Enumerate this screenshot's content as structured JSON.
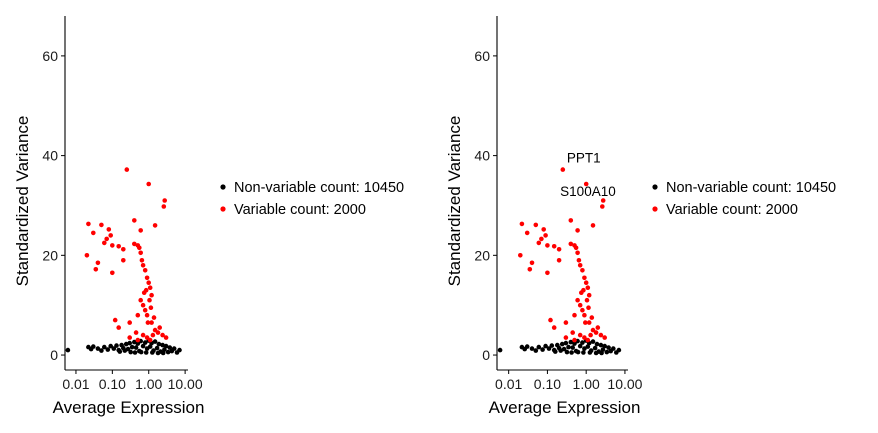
{
  "colors": {
    "nonvariable": "#000000",
    "variable": "#ff0000",
    "axis": "#000000"
  },
  "chart_data": [
    {
      "type": "scatter",
      "xscale": "log10",
      "xlim": [
        0.005,
        12
      ],
      "ylim": [
        -3,
        68
      ],
      "xticks": [
        0.01,
        0.1,
        1,
        10
      ],
      "xtick_labels": [
        "0.01",
        "0.10",
        "1.00",
        "10.00"
      ],
      "yticks": [
        0,
        20,
        40,
        60
      ],
      "ytick_labels": [
        "0",
        "20",
        "40",
        "60"
      ],
      "xlabel": "Average Expression",
      "ylabel": "Standardized Variance",
      "grid": false,
      "legend_position": "right",
      "series": [
        {
          "name": "Non-variable count: 10450",
          "color": "#000000",
          "points": [
            [
              0.006,
              1.0
            ],
            [
              0.022,
              1.6
            ],
            [
              0.026,
              1.2
            ],
            [
              0.03,
              1.7
            ],
            [
              0.04,
              1.3
            ],
            [
              0.05,
              0.9
            ],
            [
              0.06,
              1.6
            ],
            [
              0.075,
              1.1
            ],
            [
              0.09,
              1.8
            ],
            [
              0.11,
              1.3
            ],
            [
              0.13,
              1.9
            ],
            [
              0.15,
              1.0
            ],
            [
              0.18,
              2.0
            ],
            [
              0.2,
              1.4
            ],
            [
              0.24,
              2.2
            ],
            [
              0.27,
              1.2
            ],
            [
              0.3,
              2.4
            ],
            [
              0.35,
              1.6
            ],
            [
              0.4,
              2.6
            ],
            [
              0.45,
              1.5
            ],
            [
              0.5,
              2.3
            ],
            [
              0.55,
              0.8
            ],
            [
              0.6,
              2.8
            ],
            [
              0.7,
              1.8
            ],
            [
              0.8,
              2.5
            ],
            [
              0.9,
              1.3
            ],
            [
              1.0,
              2.9
            ],
            [
              1.1,
              1.7
            ],
            [
              1.2,
              2.4
            ],
            [
              1.35,
              0.9
            ],
            [
              1.5,
              2.7
            ],
            [
              1.7,
              1.4
            ],
            [
              1.9,
              2.2
            ],
            [
              2.1,
              0.7
            ],
            [
              2.4,
              2.0
            ],
            [
              2.7,
              1.1
            ],
            [
              3.0,
              1.8
            ],
            [
              3.4,
              0.6
            ],
            [
              3.8,
              1.5
            ],
            [
              4.3,
              0.8
            ],
            [
              5.0,
              1.3
            ],
            [
              6.0,
              0.5
            ],
            [
              7.0,
              1.0
            ],
            [
              0.16,
              0.7
            ],
            [
              0.22,
              0.9
            ],
            [
              0.32,
              0.6
            ],
            [
              0.42,
              0.5
            ],
            [
              0.62,
              0.6
            ],
            [
              0.85,
              0.5
            ],
            [
              1.25,
              0.5
            ],
            [
              1.8,
              0.4
            ],
            [
              2.5,
              0.4
            ]
          ]
        },
        {
          "name": "Variable count: 2000",
          "color": "#ff0000",
          "points": [
            [
              0.25,
              37.2
            ],
            [
              1.0,
              34.3
            ],
            [
              2.75,
              31.0
            ],
            [
              2.6,
              29.8
            ],
            [
              0.4,
              27.0
            ],
            [
              0.6,
              25.0
            ],
            [
              1.5,
              26.0
            ],
            [
              0.022,
              26.3
            ],
            [
              0.03,
              24.5
            ],
            [
              0.05,
              26.1
            ],
            [
              0.08,
              25.2
            ],
            [
              0.06,
              22.5
            ],
            [
              0.07,
              23.3
            ],
            [
              0.09,
              24.0
            ],
            [
              0.1,
              22.0
            ],
            [
              0.15,
              21.8
            ],
            [
              0.2,
              21.2
            ],
            [
              0.4,
              22.3
            ],
            [
              0.5,
              22.0
            ],
            [
              0.55,
              21.5
            ],
            [
              0.6,
              20.5
            ],
            [
              0.65,
              19.0
            ],
            [
              0.7,
              18.0
            ],
            [
              0.8,
              17.0
            ],
            [
              0.9,
              15.5
            ],
            [
              1.0,
              14.5
            ],
            [
              1.1,
              13.5
            ],
            [
              1.2,
              12.0
            ],
            [
              0.2,
              19.0
            ],
            [
              0.02,
              20.0
            ],
            [
              0.04,
              18.5
            ],
            [
              0.1,
              16.5
            ],
            [
              0.035,
              17.2
            ],
            [
              0.12,
              7.0
            ],
            [
              0.15,
              5.5
            ],
            [
              0.3,
              6.5
            ],
            [
              0.5,
              8.0
            ],
            [
              0.6,
              11.0
            ],
            [
              0.7,
              10.0
            ],
            [
              0.8,
              9.0
            ],
            [
              0.9,
              8.0
            ],
            [
              1.2,
              6.5
            ],
            [
              1.5,
              5.0
            ],
            [
              1.8,
              4.5
            ],
            [
              2.0,
              5.5
            ],
            [
              2.4,
              4.0
            ],
            [
              3.0,
              3.5
            ],
            [
              0.5,
              3.0
            ],
            [
              0.7,
              4.0
            ],
            [
              0.9,
              3.5
            ],
            [
              1.1,
              3.0
            ],
            [
              1.3,
              4.0
            ],
            [
              0.3,
              3.5
            ],
            [
              0.45,
              4.5
            ],
            [
              0.95,
              6.5
            ],
            [
              1.4,
              7.5
            ],
            [
              0.75,
              12.5
            ],
            [
              0.85,
              13.0
            ],
            [
              1.05,
              11.0
            ],
            [
              1.15,
              9.5
            ]
          ]
        }
      ],
      "annotations": []
    },
    {
      "type": "scatter",
      "xscale": "log10",
      "xlim": [
        0.005,
        12
      ],
      "ylim": [
        -3,
        68
      ],
      "xticks": [
        0.01,
        0.1,
        1,
        10
      ],
      "xtick_labels": [
        "0.01",
        "0.10",
        "1.00",
        "10.00"
      ],
      "yticks": [
        0,
        20,
        40,
        60
      ],
      "ytick_labels": [
        "0",
        "20",
        "40",
        "60"
      ],
      "xlabel": "Average Expression",
      "ylabel": "Standardized Variance",
      "grid": false,
      "legend_position": "right",
      "series": [
        {
          "name": "Non-variable count: 10450",
          "color": "#000000",
          "points": [
            [
              0.006,
              1.0
            ],
            [
              0.022,
              1.6
            ],
            [
              0.026,
              1.2
            ],
            [
              0.03,
              1.7
            ],
            [
              0.04,
              1.3
            ],
            [
              0.05,
              0.9
            ],
            [
              0.06,
              1.6
            ],
            [
              0.075,
              1.1
            ],
            [
              0.09,
              1.8
            ],
            [
              0.11,
              1.3
            ],
            [
              0.13,
              1.9
            ],
            [
              0.15,
              1.0
            ],
            [
              0.18,
              2.0
            ],
            [
              0.2,
              1.4
            ],
            [
              0.24,
              2.2
            ],
            [
              0.27,
              1.2
            ],
            [
              0.3,
              2.4
            ],
            [
              0.35,
              1.6
            ],
            [
              0.4,
              2.6
            ],
            [
              0.45,
              1.5
            ],
            [
              0.5,
              2.3
            ],
            [
              0.55,
              0.8
            ],
            [
              0.6,
              2.8
            ],
            [
              0.7,
              1.8
            ],
            [
              0.8,
              2.5
            ],
            [
              0.9,
              1.3
            ],
            [
              1.0,
              2.9
            ],
            [
              1.1,
              1.7
            ],
            [
              1.2,
              2.4
            ],
            [
              1.35,
              0.9
            ],
            [
              1.5,
              2.7
            ],
            [
              1.7,
              1.4
            ],
            [
              1.9,
              2.2
            ],
            [
              2.1,
              0.7
            ],
            [
              2.4,
              2.0
            ],
            [
              2.7,
              1.1
            ],
            [
              3.0,
              1.8
            ],
            [
              3.4,
              0.6
            ],
            [
              3.8,
              1.5
            ],
            [
              4.3,
              0.8
            ],
            [
              5.0,
              1.3
            ],
            [
              6.0,
              0.5
            ],
            [
              7.0,
              1.0
            ],
            [
              0.16,
              0.7
            ],
            [
              0.22,
              0.9
            ],
            [
              0.32,
              0.6
            ],
            [
              0.42,
              0.5
            ],
            [
              0.62,
              0.6
            ],
            [
              0.85,
              0.5
            ],
            [
              1.25,
              0.5
            ],
            [
              1.8,
              0.4
            ],
            [
              2.5,
              0.4
            ]
          ]
        },
        {
          "name": "Variable count: 2000",
          "color": "#ff0000",
          "points": [
            [
              0.25,
              37.2
            ],
            [
              1.0,
              34.3
            ],
            [
              2.75,
              31.0
            ],
            [
              2.6,
              29.8
            ],
            [
              0.4,
              27.0
            ],
            [
              0.6,
              25.0
            ],
            [
              1.5,
              26.0
            ],
            [
              0.022,
              26.3
            ],
            [
              0.03,
              24.5
            ],
            [
              0.05,
              26.1
            ],
            [
              0.08,
              25.2
            ],
            [
              0.06,
              22.5
            ],
            [
              0.07,
              23.3
            ],
            [
              0.09,
              24.0
            ],
            [
              0.1,
              22.0
            ],
            [
              0.15,
              21.8
            ],
            [
              0.2,
              21.2
            ],
            [
              0.4,
              22.3
            ],
            [
              0.5,
              22.0
            ],
            [
              0.55,
              21.5
            ],
            [
              0.6,
              20.5
            ],
            [
              0.65,
              19.0
            ],
            [
              0.7,
              18.0
            ],
            [
              0.8,
              17.0
            ],
            [
              0.9,
              15.5
            ],
            [
              1.0,
              14.5
            ],
            [
              1.1,
              13.5
            ],
            [
              1.2,
              12.0
            ],
            [
              0.2,
              19.0
            ],
            [
              0.02,
              20.0
            ],
            [
              0.04,
              18.5
            ],
            [
              0.1,
              16.5
            ],
            [
              0.035,
              17.2
            ],
            [
              0.12,
              7.0
            ],
            [
              0.15,
              5.5
            ],
            [
              0.3,
              6.5
            ],
            [
              0.5,
              8.0
            ],
            [
              0.6,
              11.0
            ],
            [
              0.7,
              10.0
            ],
            [
              0.8,
              9.0
            ],
            [
              0.9,
              8.0
            ],
            [
              1.2,
              6.5
            ],
            [
              1.5,
              5.0
            ],
            [
              1.8,
              4.5
            ],
            [
              2.0,
              5.5
            ],
            [
              2.4,
              4.0
            ],
            [
              3.0,
              3.5
            ],
            [
              0.5,
              3.0
            ],
            [
              0.7,
              4.0
            ],
            [
              0.9,
              3.5
            ],
            [
              1.1,
              3.0
            ],
            [
              1.3,
              4.0
            ],
            [
              0.3,
              3.5
            ],
            [
              0.45,
              4.5
            ],
            [
              0.95,
              6.5
            ],
            [
              1.4,
              7.5
            ],
            [
              0.75,
              12.5
            ],
            [
              0.85,
              13.0
            ],
            [
              1.05,
              11.0
            ],
            [
              1.15,
              9.5
            ]
          ]
        }
      ],
      "annotations": [
        {
          "label": "PPT1",
          "x": 0.25,
          "y": 37.2
        },
        {
          "label": "S100A10",
          "x": 1.0,
          "y": 34.3
        }
      ]
    }
  ]
}
